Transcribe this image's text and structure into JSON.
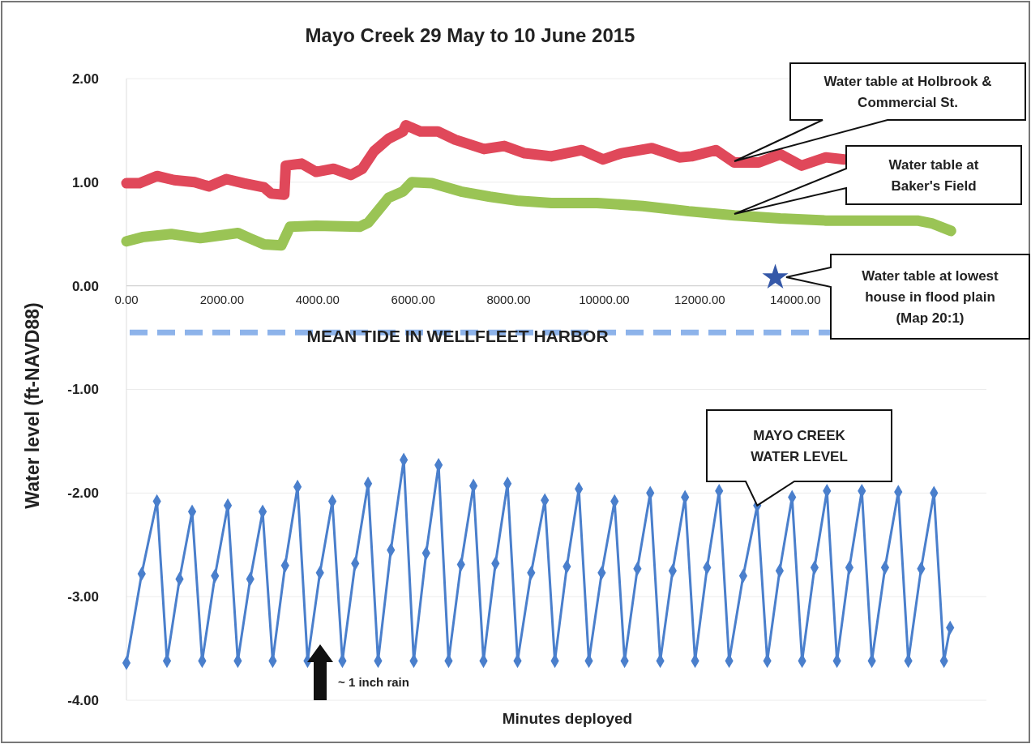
{
  "chart_data": {
    "type": "line",
    "title": "Mayo Creek 29 May to 10 June 2015",
    "xlabel": "Minutes deployed",
    "ylabel": "Water level (ft-NAVD88)",
    "xlim": [
      0,
      18000
    ],
    "ylim": [
      -4,
      2
    ],
    "xticks": [
      {
        "value": 0,
        "label": "0.00"
      },
      {
        "value": 2000,
        "label": "2000.00"
      },
      {
        "value": 4000,
        "label": "4000.00"
      },
      {
        "value": 6000,
        "label": "6000.00"
      },
      {
        "value": 8000,
        "label": "8000.00"
      },
      {
        "value": 10000,
        "label": "10000.00"
      },
      {
        "value": 12000,
        "label": "12000.00"
      },
      {
        "value": 14000,
        "label": "14000.00"
      }
    ],
    "yticks": [
      {
        "value": -4,
        "label": "-4.00"
      },
      {
        "value": -3,
        "label": "-3.00"
      },
      {
        "value": -2,
        "label": "-2.00"
      },
      {
        "value": -1,
        "label": "-1.00"
      },
      {
        "value": 0,
        "label": "0.00"
      },
      {
        "value": 1,
        "label": "1.00"
      },
      {
        "value": 2,
        "label": "2.00"
      }
    ],
    "grid": "y",
    "series": [
      {
        "color": "#e0485a",
        "marker": "none",
        "x": [
          0,
          274,
          638,
          1001,
          1425,
          1729,
          2092,
          2456,
          2880,
          3031,
          3304,
          3335,
          3666,
          3971,
          4334,
          4699,
          4938,
          5183,
          5486,
          5787,
          5849,
          6153,
          6516,
          6880,
          7484,
          7908,
          8333,
          8892,
          9530,
          9979,
          10361,
          10997,
          11574,
          11828,
          12337,
          12724,
          13235,
          13683,
          14129,
          14640,
          15023
        ],
        "values": [
          0.99,
          0.99,
          1.06,
          1.02,
          1.0,
          0.96,
          1.03,
          0.99,
          0.95,
          0.89,
          0.88,
          1.16,
          1.18,
          1.1,
          1.13,
          1.07,
          1.13,
          1.3,
          1.42,
          1.49,
          1.55,
          1.49,
          1.49,
          1.41,
          1.32,
          1.35,
          1.28,
          1.25,
          1.31,
          1.22,
          1.28,
          1.33,
          1.24,
          1.25,
          1.31,
          1.19,
          1.19,
          1.27,
          1.16,
          1.24,
          1.22
        ]
      },
      {
        "color": "#9ac455",
        "marker": "none",
        "x": [
          0,
          334,
          940,
          1544,
          2335,
          2577,
          2880,
          3242,
          3425,
          3971,
          4880,
          5062,
          5486,
          5787,
          5972,
          6396,
          7002,
          7608,
          8214,
          8892,
          9851,
          10808,
          11767,
          12724,
          13683,
          14640,
          15596,
          16556,
          16875,
          17258
        ],
        "values": [
          0.43,
          0.47,
          0.5,
          0.46,
          0.51,
          0.46,
          0.4,
          0.39,
          0.57,
          0.58,
          0.57,
          0.61,
          0.85,
          0.91,
          1.0,
          0.99,
          0.91,
          0.86,
          0.82,
          0.8,
          0.8,
          0.77,
          0.72,
          0.68,
          0.65,
          0.63,
          0.63,
          0.63,
          0.6,
          0.53
        ]
      },
      {
        "type": "scatter",
        "color": "#3558a8",
        "marker": "star",
        "x": [
          13581
        ],
        "values": [
          0.08
        ]
      },
      {
        "color": "#4a7fcc",
        "marker": "diamond",
        "x": [
          0,
          319,
          638,
          848,
          1111,
          1375,
          1585,
          1853,
          2121,
          2331,
          2591,
          2851,
          3061,
          3321,
          3581,
          3791,
          4050,
          4310,
          4520,
          4788,
          5057,
          5267,
          5535,
          5804,
          6014,
          6273,
          6533,
          6743,
          7003,
          7263,
          7473,
          7724,
          7976,
          8186,
          8471,
          8757,
          8967,
          9218,
          9469,
          9679,
          9948,
          10217,
          10427,
          10695,
          10963,
          11173,
          11432,
          11692,
          11902,
          12153,
          12405,
          12615,
          12909,
          13203,
          13413,
          13672,
          13932,
          14142,
          14402,
          14662,
          14872,
          15132,
          15392,
          15602,
          15878,
          16155,
          16365,
          16633,
          16902,
          17112,
          17240
        ],
        "values": [
          -3.64,
          -2.78,
          -2.08,
          -3.62,
          -2.83,
          -2.18,
          -3.62,
          -2.8,
          -2.12,
          -3.62,
          -2.83,
          -2.18,
          -3.62,
          -2.7,
          -1.94,
          -3.62,
          -2.77,
          -2.08,
          -3.62,
          -2.68,
          -1.91,
          -3.62,
          -2.55,
          -1.68,
          -3.62,
          -2.58,
          -1.73,
          -3.62,
          -2.69,
          -1.93,
          -3.62,
          -2.68,
          -1.91,
          -3.62,
          -2.77,
          -2.07,
          -3.62,
          -2.71,
          -1.96,
          -3.62,
          -2.77,
          -2.08,
          -3.62,
          -2.73,
          -2.0,
          -3.62,
          -2.75,
          -2.04,
          -3.62,
          -2.72,
          -1.98,
          -3.62,
          -2.8,
          -2.12,
          -3.62,
          -2.75,
          -2.04,
          -3.62,
          -2.72,
          -1.98,
          -3.62,
          -2.72,
          -1.98,
          -3.62,
          -2.72,
          -1.99,
          -3.62,
          -2.73,
          -2.0,
          -3.62,
          -3.3
        ]
      }
    ],
    "ref_lines": [
      {
        "axis": "y",
        "value": -0.45,
        "label": "MEAN TIDE IN WELLFLEET HARBOR",
        "color": "#8db3ea",
        "line_style": "dashed"
      }
    ],
    "annotations": [
      "Water table at Holbrook &\nCommercial St.",
      "Water table at\nBaker's Field",
      "Water table at lowest\nhouse in flood plain\n(Map 20:1)",
      {
        "text": "MAYO CREEK\nWATER LEVEL",
        "x": 13203,
        "y": -2.12
      },
      "~ 1 inch rain"
    ]
  }
}
